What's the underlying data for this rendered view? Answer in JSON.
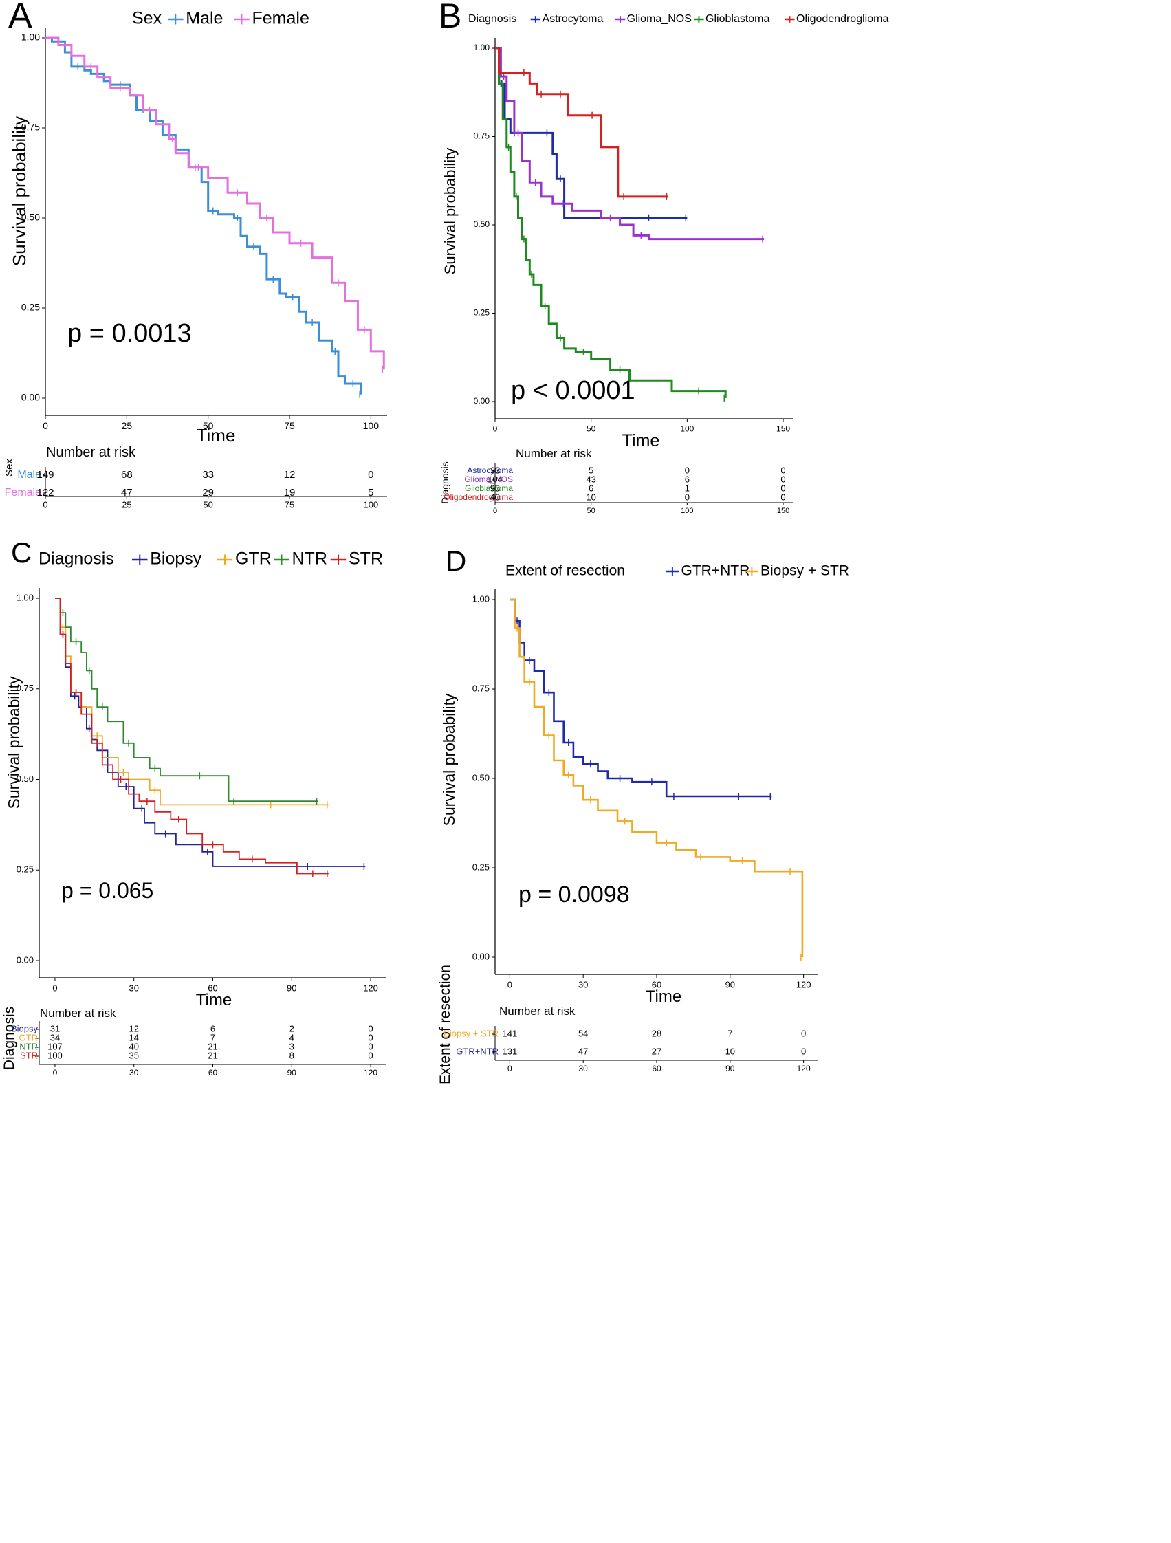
{
  "chart_data": [
    {
      "panel": "A",
      "type": "line",
      "subtype": "kaplan-meier",
      "legend_title": "Sex",
      "xlabel": "Time",
      "ylabel": "Survival probability",
      "xlim": [
        0,
        105
      ],
      "ylim": [
        0,
        1
      ],
      "x_ticks": [
        0,
        25,
        50,
        75,
        100
      ],
      "y_ticks": [
        "0.00",
        "0.25",
        "0.50",
        "0.75",
        "1.00"
      ],
      "pvalue": "p = 0.0013",
      "series": [
        {
          "name": "Male",
          "color": "#3b8fd6",
          "x": [
            0,
            2,
            6,
            8,
            12,
            14,
            18,
            20,
            26,
            28,
            32,
            36,
            40,
            44,
            48,
            50,
            53,
            58,
            60,
            62,
            66,
            68,
            72,
            74,
            78,
            80,
            84,
            88,
            90,
            92,
            97
          ],
          "y": [
            1.0,
            0.99,
            0.96,
            0.92,
            0.91,
            0.9,
            0.88,
            0.87,
            0.84,
            0.8,
            0.77,
            0.73,
            0.69,
            0.64,
            0.6,
            0.52,
            0.51,
            0.5,
            0.45,
            0.42,
            0.4,
            0.33,
            0.29,
            0.28,
            0.24,
            0.21,
            0.16,
            0.13,
            0.06,
            0.04,
            0.01
          ]
        },
        {
          "name": "Female",
          "color": "#e56fe0",
          "x": [
            0,
            4,
            8,
            12,
            16,
            20,
            26,
            30,
            34,
            38,
            40,
            44,
            50,
            56,
            62,
            66,
            70,
            75,
            82,
            88,
            92,
            96,
            100,
            104
          ],
          "y": [
            1.0,
            0.98,
            0.95,
            0.92,
            0.89,
            0.86,
            0.84,
            0.8,
            0.76,
            0.72,
            0.68,
            0.64,
            0.61,
            0.57,
            0.54,
            0.5,
            0.46,
            0.43,
            0.39,
            0.32,
            0.27,
            0.19,
            0.13,
            0.08
          ]
        }
      ],
      "risk_table": {
        "title": "Number at risk",
        "strata_label": "Sex",
        "rows": [
          {
            "name": "Male",
            "color": "#3b8fd6",
            "values": [
              "149",
              "68",
              "33",
              "12",
              "0"
            ]
          },
          {
            "name": "Female",
            "color": "#e56fe0",
            "values": [
              "122",
              "47",
              "29",
              "19",
              "5"
            ]
          }
        ]
      }
    },
    {
      "panel": "B",
      "type": "line",
      "subtype": "kaplan-meier",
      "legend_title": "Diagnosis",
      "xlabel": "Time",
      "ylabel": "Survival probability",
      "xlim": [
        0,
        155
      ],
      "ylim": [
        0,
        1
      ],
      "x_ticks": [
        0,
        50,
        100,
        150
      ],
      "y_ticks": [
        "0.00",
        "0.25",
        "0.50",
        "0.75",
        "1.00"
      ],
      "pvalue": "p < 0.0001",
      "series": [
        {
          "name": "Astrocytoma",
          "color": "#1f2aa8",
          "x": [
            0,
            2,
            5,
            8,
            12,
            24,
            30,
            32,
            36,
            60,
            100
          ],
          "y": [
            1.0,
            0.9,
            0.8,
            0.76,
            0.76,
            0.76,
            0.7,
            0.63,
            0.52,
            0.52,
            0.52
          ]
        },
        {
          "name": "Glioma_NOS",
          "color": "#9a32d0",
          "x": [
            0,
            3,
            6,
            10,
            14,
            18,
            24,
            30,
            40,
            55,
            65,
            72,
            80,
            140
          ],
          "y": [
            1.0,
            0.92,
            0.85,
            0.76,
            0.68,
            0.62,
            0.58,
            0.56,
            0.54,
            0.52,
            0.5,
            0.47,
            0.46,
            0.46
          ]
        },
        {
          "name": "Glioblastoma",
          "color": "#1f8a1f",
          "x": [
            0,
            2,
            4,
            6,
            8,
            10,
            12,
            14,
            16,
            18,
            20,
            24,
            28,
            32,
            36,
            42,
            50,
            60,
            70,
            92,
            120
          ],
          "y": [
            1.0,
            0.9,
            0.8,
            0.72,
            0.65,
            0.58,
            0.52,
            0.46,
            0.4,
            0.36,
            0.33,
            0.27,
            0.22,
            0.18,
            0.15,
            0.14,
            0.12,
            0.09,
            0.06,
            0.03,
            0.01
          ]
        },
        {
          "name": "Oligodendroglioma",
          "color": "#d62020",
          "x": [
            0,
            2,
            4,
            12,
            18,
            22,
            26,
            30,
            38,
            46,
            55,
            64,
            70,
            90
          ],
          "y": [
            1.0,
            0.93,
            0.93,
            0.93,
            0.9,
            0.87,
            0.87,
            0.87,
            0.81,
            0.81,
            0.72,
            0.58,
            0.58,
            0.58
          ]
        }
      ],
      "risk_table": {
        "title": "Number at risk",
        "strata_label": "Diagnosis",
        "rows": [
          {
            "name": "Astrocytoma",
            "color": "#1f2aa8",
            "values": [
              "33",
              "5",
              "0",
              "0"
            ]
          },
          {
            "name": "Glioma_NOS",
            "color": "#9a32d0",
            "values": [
              "104",
              "43",
              "6",
              "0"
            ]
          },
          {
            "name": "Glioblastoma",
            "color": "#1f8a1f",
            "values": [
              "95",
              "6",
              "1",
              "0"
            ]
          },
          {
            "name": "Oligodendroglioma",
            "color": "#d62020",
            "values": [
              "40",
              "10",
              "0",
              "0"
            ]
          }
        ]
      }
    },
    {
      "panel": "C",
      "type": "line",
      "subtype": "kaplan-meier",
      "legend_title": "Diagnosis",
      "xlabel": "Time",
      "ylabel": "Survival probability",
      "xlim": [
        -6,
        126
      ],
      "ylim": [
        0,
        1
      ],
      "x_ticks": [
        0,
        30,
        60,
        90,
        120
      ],
      "y_ticks": [
        "0.00",
        "0.25",
        "0.50",
        "0.75",
        "1.00"
      ],
      "pvalue": "p = 0.065",
      "series": [
        {
          "name": "Biopsy",
          "color": "#23239a",
          "x": [
            0,
            2,
            4,
            6,
            9,
            12,
            14,
            16,
            20,
            24,
            30,
            32,
            34,
            38,
            46,
            56,
            60,
            74,
            118
          ],
          "y": [
            1.0,
            0.9,
            0.81,
            0.73,
            0.7,
            0.64,
            0.61,
            0.58,
            0.52,
            0.48,
            0.42,
            0.42,
            0.38,
            0.35,
            0.32,
            0.3,
            0.26,
            0.26,
            0.26
          ]
        },
        {
          "name": "GTR",
          "color": "#f0a922",
          "x": [
            0,
            2,
            4,
            6,
            10,
            14,
            18,
            24,
            28,
            36,
            40,
            60,
            104
          ],
          "y": [
            1.0,
            0.92,
            0.84,
            0.74,
            0.7,
            0.62,
            0.56,
            0.52,
            0.5,
            0.47,
            0.43,
            0.43,
            0.43
          ]
        },
        {
          "name": "NTR",
          "color": "#2d8a2d",
          "x": [
            0,
            2,
            4,
            6,
            10,
            12,
            14,
            16,
            20,
            26,
            30,
            36,
            40,
            50,
            60,
            66,
            70,
            100
          ],
          "y": [
            1.0,
            0.96,
            0.92,
            0.88,
            0.85,
            0.8,
            0.75,
            0.7,
            0.66,
            0.6,
            0.56,
            0.53,
            0.51,
            0.51,
            0.51,
            0.44,
            0.44,
            0.44
          ]
        },
        {
          "name": "STR",
          "color": "#d62020",
          "x": [
            0,
            2,
            4,
            6,
            10,
            14,
            18,
            22,
            28,
            32,
            38,
            44,
            50,
            56,
            64,
            70,
            80,
            92,
            104
          ],
          "y": [
            1.0,
            0.9,
            0.82,
            0.74,
            0.68,
            0.6,
            0.54,
            0.5,
            0.46,
            0.44,
            0.41,
            0.39,
            0.35,
            0.32,
            0.3,
            0.28,
            0.27,
            0.24,
            0.24
          ]
        }
      ],
      "risk_table": {
        "title": "Number at risk",
        "strata_label": "Diagnosis",
        "rows": [
          {
            "name": "Biopsy",
            "color": "#23239a",
            "values": [
              "31",
              "12",
              "6",
              "2",
              "0"
            ]
          },
          {
            "name": "GTR",
            "color": "#f0a922",
            "values": [
              "34",
              "14",
              "7",
              "4",
              "0"
            ]
          },
          {
            "name": "NTR",
            "color": "#2d8a2d",
            "values": [
              "107",
              "40",
              "21",
              "3",
              "0"
            ]
          },
          {
            "name": "STR",
            "color": "#d62020",
            "values": [
              "100",
              "35",
              "21",
              "8",
              "0"
            ]
          }
        ]
      }
    },
    {
      "panel": "D",
      "type": "line",
      "subtype": "kaplan-meier",
      "legend_title": "Extent of resection",
      "xlabel": "Time",
      "ylabel": "Survival probability",
      "xlim": [
        -6,
        126
      ],
      "ylim": [
        0,
        1
      ],
      "x_ticks": [
        0,
        30,
        60,
        90,
        120
      ],
      "y_ticks": [
        "0.00",
        "0.25",
        "0.50",
        "0.75",
        "1.00"
      ],
      "pvalue": "p = 0.0098",
      "series": [
        {
          "name": "GTR+NTR",
          "color": "#1f2aa8",
          "x": [
            0,
            2,
            4,
            6,
            10,
            14,
            18,
            22,
            26,
            30,
            36,
            40,
            50,
            56,
            60,
            64,
            70,
            80,
            107
          ],
          "y": [
            1.0,
            0.94,
            0.88,
            0.83,
            0.8,
            0.74,
            0.66,
            0.6,
            0.56,
            0.54,
            0.52,
            0.5,
            0.49,
            0.49,
            0.49,
            0.45,
            0.45,
            0.45,
            0.45
          ]
        },
        {
          "name": "Biopsy + STR",
          "color": "#f0a922",
          "x": [
            0,
            2,
            4,
            6,
            10,
            14,
            18,
            22,
            26,
            30,
            36,
            44,
            50,
            60,
            68,
            76,
            80,
            90,
            100,
            110,
            119,
            119.5
          ],
          "y": [
            1.0,
            0.92,
            0.84,
            0.77,
            0.7,
            0.62,
            0.55,
            0.51,
            0.48,
            0.44,
            0.41,
            0.38,
            0.35,
            0.32,
            0.3,
            0.28,
            0.28,
            0.27,
            0.24,
            0.24,
            0.24,
            0.0
          ]
        }
      ],
      "risk_table": {
        "title": "Number at risk",
        "strata_label": "Extent of resection",
        "rows": [
          {
            "name": "Biopsy + STR",
            "color": "#f0a922",
            "values": [
              "141",
              "54",
              "28",
              "7",
              "0"
            ]
          },
          {
            "name": "GTR+NTR",
            "color": "#1f2aa8",
            "values": [
              "131",
              "47",
              "27",
              "10",
              "0"
            ]
          }
        ]
      }
    }
  ]
}
